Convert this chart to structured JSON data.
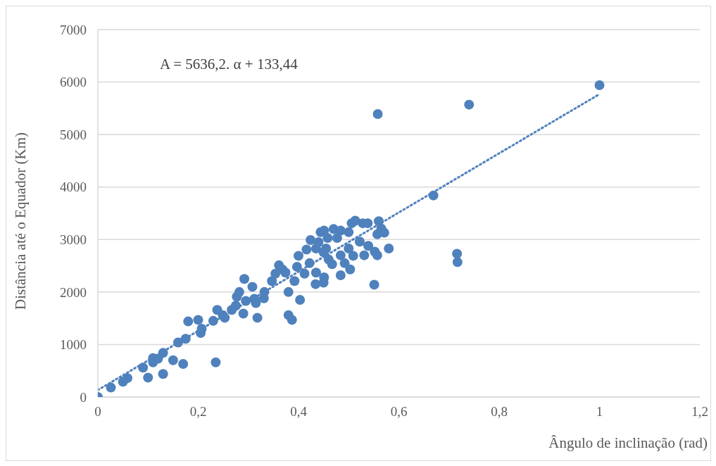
{
  "chart_data": {
    "type": "scatter",
    "xlabel": "Ângulo de inclinação (rad)",
    "ylabel": "Distância até o Equador (Km)",
    "annotations": [
      "A = 5636,2. α + 133,44"
    ],
    "xlim": [
      0,
      1.2
    ],
    "xticks": [
      0,
      {
        "value": 0.2,
        "label": "0,2"
      },
      {
        "value": 0.4,
        "label": "0,4"
      },
      {
        "value": 0.6,
        "label": "0,6"
      },
      {
        "value": 0.8,
        "label": "0,8"
      },
      1,
      {
        "value": 1.2,
        "label": "1,2"
      }
    ],
    "ylim": [
      0,
      7000
    ],
    "yticks": [
      0,
      1000,
      2000,
      3000,
      4000,
      5000,
      6000,
      7000
    ],
    "grid": "y",
    "marker": "circle",
    "series": [
      {
        "type": "scatter",
        "color": "#4f81bd",
        "x": [
          0,
          0.026,
          0.05,
          0.059,
          0.09,
          0.1,
          0.11,
          0.11,
          0.13,
          0.13,
          0.12,
          0.15,
          0.16,
          0.17,
          0.175,
          0.18,
          0.2,
          0.205,
          0.207,
          0.23,
          0.235,
          0.238,
          0.249,
          0.253,
          0.267,
          0.275,
          0.277,
          0.282,
          0.292,
          0.29,
          0.295,
          0.308,
          0.312,
          0.315,
          0.318,
          0.332,
          0.331,
          0.347,
          0.354,
          0.361,
          0.368,
          0.374,
          0.38,
          0.38,
          0.387,
          0.392,
          0.397,
          0.403,
          0.4,
          0.412,
          0.416,
          0.422,
          0.434,
          0.435,
          0.44,
          0.444,
          0.451,
          0.451,
          0.45,
          0.455,
          0.46,
          0.467,
          0.47,
          0.477,
          0.484,
          0.484,
          0.492,
          0.5,
          0.5,
          0.503,
          0.506,
          0.509,
          0.513,
          0.528,
          0.538,
          0.531,
          0.539,
          0.552,
          0.557,
          0.56,
          0.565,
          0.571,
          0.58,
          0.551,
          0.557,
          0.558,
          0.669,
          0.716,
          0.717,
          0.74,
          1,
          0.435,
          0.424,
          0.458,
          0.45,
          0.484,
          0.522
        ],
        "values": [
          0,
          180,
          290,
          360,
          560,
          370,
          740,
          660,
          440,
          840,
          730,
          700,
          1040,
          630,
          1110,
          1440,
          1470,
          1220,
          1300,
          1450,
          660,
          1660,
          1560,
          1510,
          1660,
          1740,
          1910,
          2000,
          2250,
          1590,
          1830,
          2100,
          1870,
          1790,
          1510,
          2000,
          1880,
          2210,
          2350,
          2510,
          2430,
          2370,
          2000,
          1560,
          1470,
          2210,
          2480,
          1850,
          2690,
          2350,
          2810,
          2550,
          2150,
          2370,
          2950,
          3140,
          3170,
          2280,
          2180,
          2830,
          2620,
          2530,
          3200,
          3030,
          2320,
          2700,
          2550,
          3140,
          2830,
          2430,
          3310,
          2690,
          3360,
          3310,
          3310,
          2700,
          2880,
          2770,
          3100,
          3350,
          3210,
          3130,
          2830,
          2140,
          2700,
          5390,
          3840,
          2730,
          2570,
          5570,
          5940,
          2830,
          2990,
          3030,
          2760,
          3170,
          2960
        ]
      },
      {
        "type": "line",
        "color": "#4f81bd",
        "line_style": "dotted",
        "marker": "none",
        "x": [
          0,
          1
        ],
        "values": [
          133,
          5770
        ]
      }
    ]
  }
}
